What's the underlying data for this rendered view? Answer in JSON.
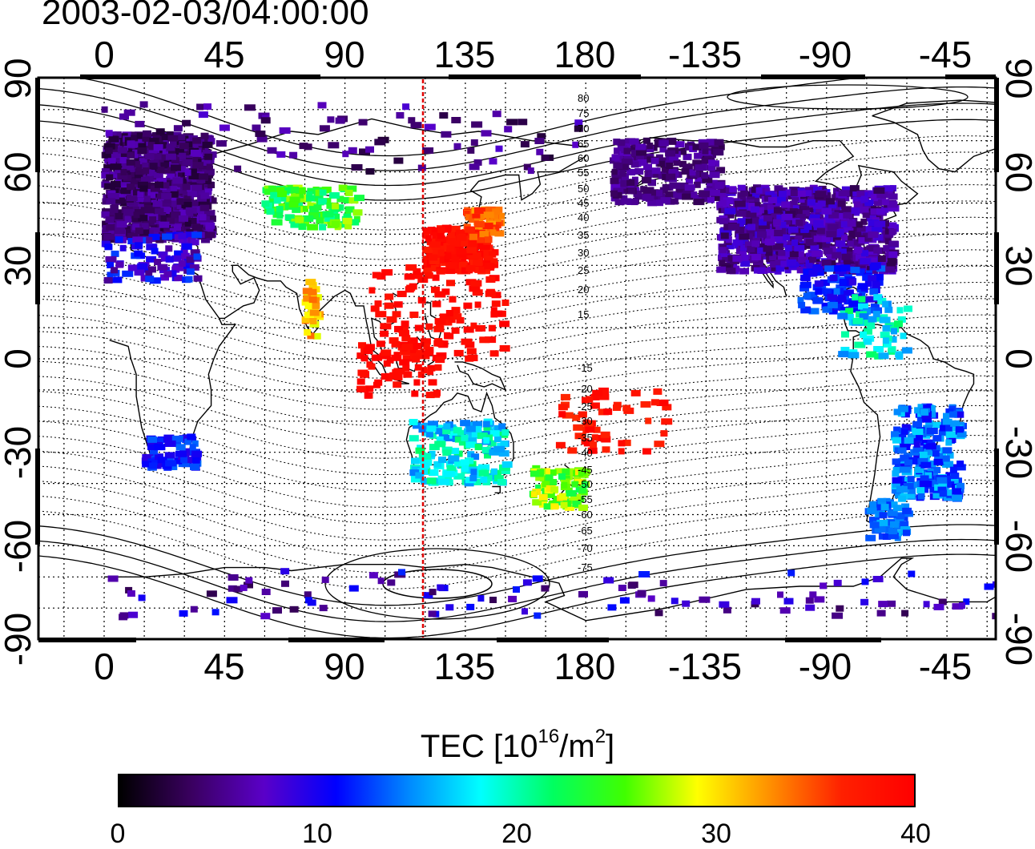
{
  "title": "2003-02-03/04:00:00",
  "map": {
    "x_tick_labels": [
      "0",
      "45",
      "90",
      "135",
      "180",
      "-135",
      "-90",
      "-45"
    ],
    "y_tick_labels": [
      "90",
      "60",
      "30",
      "0",
      "-30",
      "-60",
      "-90"
    ],
    "contour_labels_north": [
      "80",
      "75",
      "70",
      "65",
      "60",
      "55",
      "50",
      "45",
      "40",
      "35",
      "30",
      "25",
      "20",
      "15"
    ],
    "contour_labels_south": [
      "-15",
      "-20",
      "-25",
      "-30",
      "-35",
      "-40",
      "-45",
      "-50",
      "-55",
      "-60",
      "-65",
      "-70",
      "-75"
    ],
    "meridian_marker_color": "#e00000",
    "coastline_color": "#000000"
  },
  "colorbar": {
    "title_main": "TEC  [10",
    "title_exp1": "16",
    "title_mid": "/m",
    "title_exp2": "2",
    "title_end": "]",
    "tick_labels": [
      "0",
      "10",
      "20",
      "30",
      "40"
    ],
    "colormap_stops": [
      "#000000",
      "#3a0060",
      "#5a00c8",
      "#0000ff",
      "#0088ff",
      "#00ffff",
      "#00ff60",
      "#40ff00",
      "#ffff00",
      "#ff9000",
      "#ff2000",
      "#ff0000"
    ],
    "min": 0,
    "max": 40
  }
}
